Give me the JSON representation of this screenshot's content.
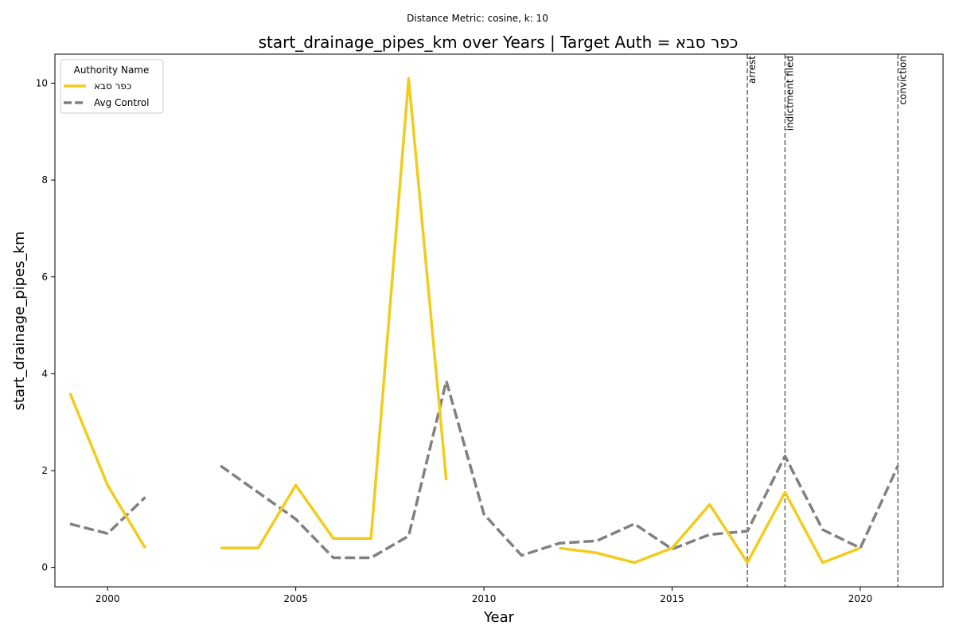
{
  "chart_data": {
    "type": "line",
    "suptitle": "Distance Metric: cosine, k: 10",
    "title": "start_drainage_pipes_km over Years | Target Auth = כפר סבא",
    "xlabel": "Year",
    "ylabel": "start_drainage_pipes_km",
    "xlim": [
      1998.6,
      2022.2
    ],
    "ylim": [
      -0.4,
      10.6
    ],
    "xticks": [
      2000,
      2005,
      2010,
      2015,
      2020
    ],
    "yticks": [
      0,
      2,
      4,
      6,
      8,
      10
    ],
    "grid": false,
    "legend": {
      "title": "Authority Name",
      "position": "top-left"
    },
    "x": [
      1999,
      2000,
      2001,
      2002,
      2003,
      2004,
      2005,
      2006,
      2007,
      2008,
      2009,
      2010,
      2011,
      2012,
      2013,
      2014,
      2015,
      2016,
      2017,
      2018,
      2019,
      2020,
      2021
    ],
    "series": [
      {
        "name": "כפר סבא",
        "color": "#F2CC1C",
        "style": "solid",
        "values": [
          3.6,
          1.7,
          0.4,
          null,
          0.4,
          0.4,
          1.7,
          0.6,
          0.6,
          10.1,
          1.8,
          null,
          null,
          0.4,
          0.3,
          0.1,
          0.4,
          1.3,
          0.1,
          1.55,
          0.1,
          0.4,
          null
        ]
      },
      {
        "name": "Avg Control",
        "color": "#808080",
        "style": "dashed",
        "values": [
          0.9,
          0.7,
          1.45,
          null,
          2.1,
          1.55,
          1.0,
          0.2,
          0.2,
          0.65,
          3.85,
          1.1,
          0.25,
          0.5,
          0.55,
          0.9,
          0.38,
          0.68,
          0.75,
          2.3,
          0.78,
          0.4,
          2.1
        ]
      }
    ],
    "annotations": [
      {
        "x": 2017,
        "label": "arrest"
      },
      {
        "x": 2018,
        "label": "indictment filed"
      },
      {
        "x": 2021,
        "label": "conviction"
      }
    ]
  }
}
